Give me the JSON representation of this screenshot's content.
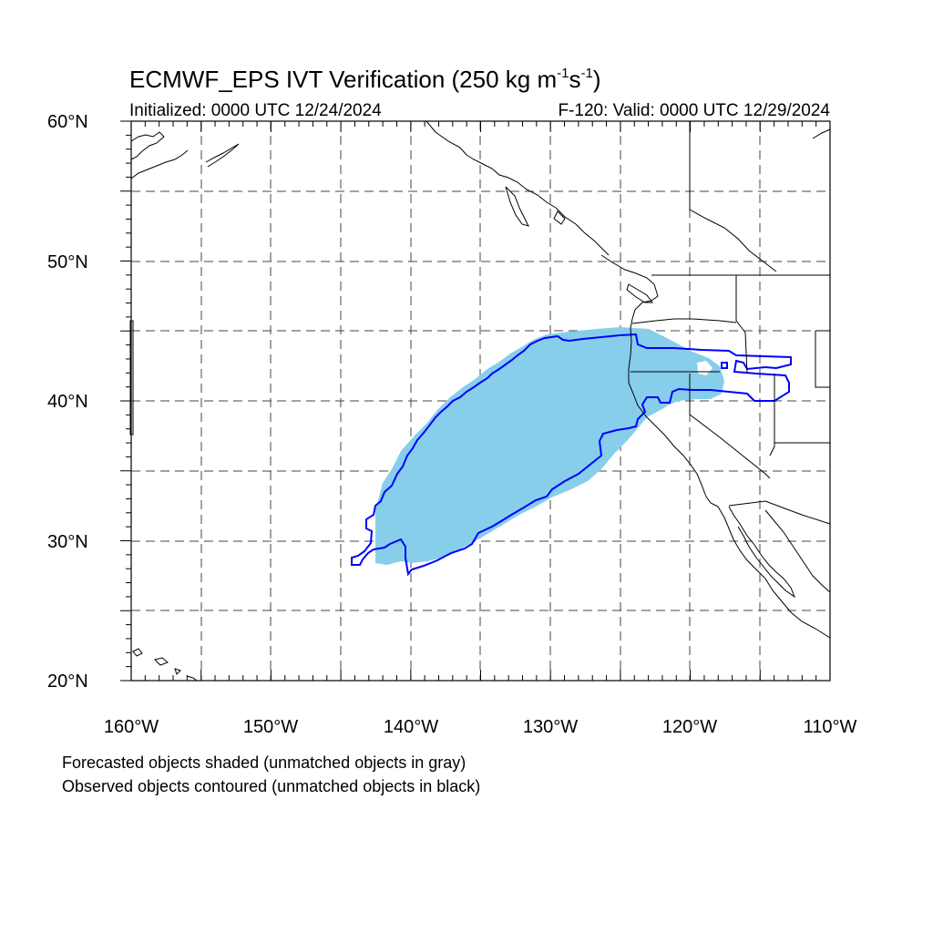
{
  "title": {
    "main": "ECMWF_EPS IVT Verification (250 kg m",
    "exp1": "-1",
    "mid": "s",
    "exp2": "-1",
    "end": ")"
  },
  "initialized": "Initialized: 0000 UTC 12/24/2024",
  "valid": "F-120: Valid: 0000 UTC 12/29/2024",
  "map": {
    "lon_range": [
      -160,
      -110
    ],
    "lat_range": [
      20,
      60
    ],
    "lon_labels": [
      "160°W",
      "150°W",
      "140°W",
      "130°W",
      "120°W",
      "110°W"
    ],
    "lat_labels": [
      "20°N",
      "30°N",
      "40°N",
      "50°N",
      "60°N"
    ],
    "forecast_color": "#87ceeb",
    "observed_color": "#0000ff"
  },
  "notes": {
    "forecast": "Forecasted objects shaded (unmatched objects in gray)",
    "observed": "Observed objects contoured (unmatched objects in black)"
  }
}
